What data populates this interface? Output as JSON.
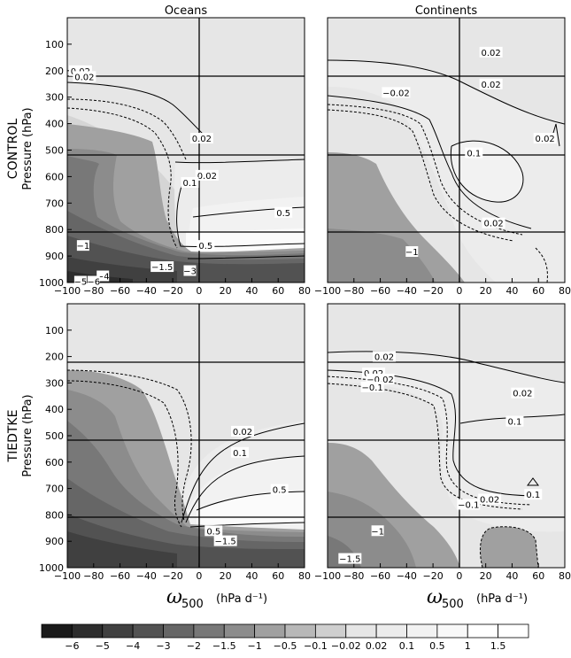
{
  "chart_data": {
    "type": "contour",
    "columns": [
      "Oceans",
      "Continents"
    ],
    "rows": [
      "CONTROL",
      "TIEDTKE"
    ],
    "ylabel": "Pressure (hPa)",
    "xlabel_symbol": "ω",
    "xlabel_subscript": "500",
    "xlabel_units": "(hPa d⁻¹)",
    "x_ticks": [
      -100,
      -80,
      -60,
      -40,
      -20,
      0,
      20,
      40,
      60,
      80
    ],
    "x_tick_labels": [
      "−100",
      "−80",
      "−60",
      "−40",
      "−20",
      "0",
      "20",
      "40",
      "60",
      "80"
    ],
    "xlim": [
      -100,
      80
    ],
    "y_ticks": [
      100,
      200,
      300,
      400,
      500,
      600,
      700,
      800,
      900,
      1000
    ],
    "ylim": [
      0,
      1000
    ],
    "y_inverted": true,
    "reference_lines": {
      "x": [
        0
      ],
      "y": [
        200,
        500,
        800
      ]
    },
    "colorbar": {
      "levels": [
        "−6",
        "−5",
        "−4",
        "−3",
        "−2",
        "−1.5",
        "−1",
        "−0.5",
        "−0.1",
        "−0.02",
        "0.02",
        "0.1",
        "0.5",
        "1",
        "1.5"
      ],
      "colors": [
        "#1a1a1a",
        "#2d2d2d",
        "#404040",
        "#525252",
        "#666666",
        "#787878",
        "#8c8c8c",
        "#a0a0a0",
        "#b8b8b8",
        "#cfcfcf",
        "#e6e6e6",
        "#ececec",
        "#f2f2f2",
        "#f8f8f8",
        "#ffffff",
        "#ffffff"
      ]
    },
    "panels": [
      {
        "row": "CONTROL",
        "column": "Oceans",
        "contour_labels": [
          {
            "text": "0.02",
            "x": -90,
            "p": 200
          },
          {
            "text": "0.02",
            "x": -87,
            "p": 222
          },
          {
            "text": "0.02",
            "x": 2,
            "p": 455
          },
          {
            "text": "0.02",
            "x": 6,
            "p": 595
          },
          {
            "text": "0.1",
            "x": -7,
            "p": 622
          },
          {
            "text": "0.5",
            "x": 64,
            "p": 735
          },
          {
            "text": "0.5",
            "x": 5,
            "p": 860
          },
          {
            "text": "−1",
            "x": -88,
            "p": 860
          },
          {
            "text": "−1.5",
            "x": -28,
            "p": 940
          },
          {
            "text": "−3",
            "x": -7,
            "p": 955
          },
          {
            "text": "−4",
            "x": -73,
            "p": 975
          },
          {
            "text": "−5",
            "x": -90,
            "p": 995
          },
          {
            "text": "−6",
            "x": -80,
            "p": 995
          }
        ]
      },
      {
        "row": "CONTROL",
        "column": "Continents",
        "contour_labels": [
          {
            "text": "0.02",
            "x": 24,
            "p": 130
          },
          {
            "text": "0.02",
            "x": 24,
            "p": 250
          },
          {
            "text": "−0.02",
            "x": -48,
            "p": 282
          },
          {
            "text": "0.02",
            "x": 65,
            "p": 455
          },
          {
            "text": "0.1",
            "x": 11,
            "p": 510
          },
          {
            "text": "0.02",
            "x": 26,
            "p": 775
          },
          {
            "text": "−1",
            "x": -36,
            "p": 883
          }
        ]
      },
      {
        "row": "TIEDTKE",
        "column": "Oceans",
        "contour_labels": [
          {
            "text": "0.02",
            "x": 33,
            "p": 483
          },
          {
            "text": "0.1",
            "x": 31,
            "p": 563
          },
          {
            "text": "0.5",
            "x": 61,
            "p": 703
          },
          {
            "text": "0.5",
            "x": 11,
            "p": 860
          },
          {
            "text": "−1.5",
            "x": 20,
            "p": 898
          }
        ]
      },
      {
        "row": "TIEDTKE",
        "column": "Continents",
        "contour_labels": [
          {
            "text": "0.02",
            "x": -57,
            "p": 200
          },
          {
            "text": "0.02",
            "x": -65,
            "p": 262
          },
          {
            "text": "−0.02",
            "x": -60,
            "p": 285
          },
          {
            "text": "−0.1",
            "x": -66,
            "p": 315
          },
          {
            "text": "0.02",
            "x": 48,
            "p": 338
          },
          {
            "text": "0.1",
            "x": 42,
            "p": 445
          },
          {
            "text": "0.02",
            "x": 23,
            "p": 740
          },
          {
            "text": "0.1",
            "x": 56,
            "p": 722
          },
          {
            "text": "−0.1",
            "x": 7,
            "p": 760
          },
          {
            "text": "−1",
            "x": -62,
            "p": 860
          },
          {
            "text": "−1.5",
            "x": -83,
            "p": 965
          }
        ]
      }
    ]
  }
}
